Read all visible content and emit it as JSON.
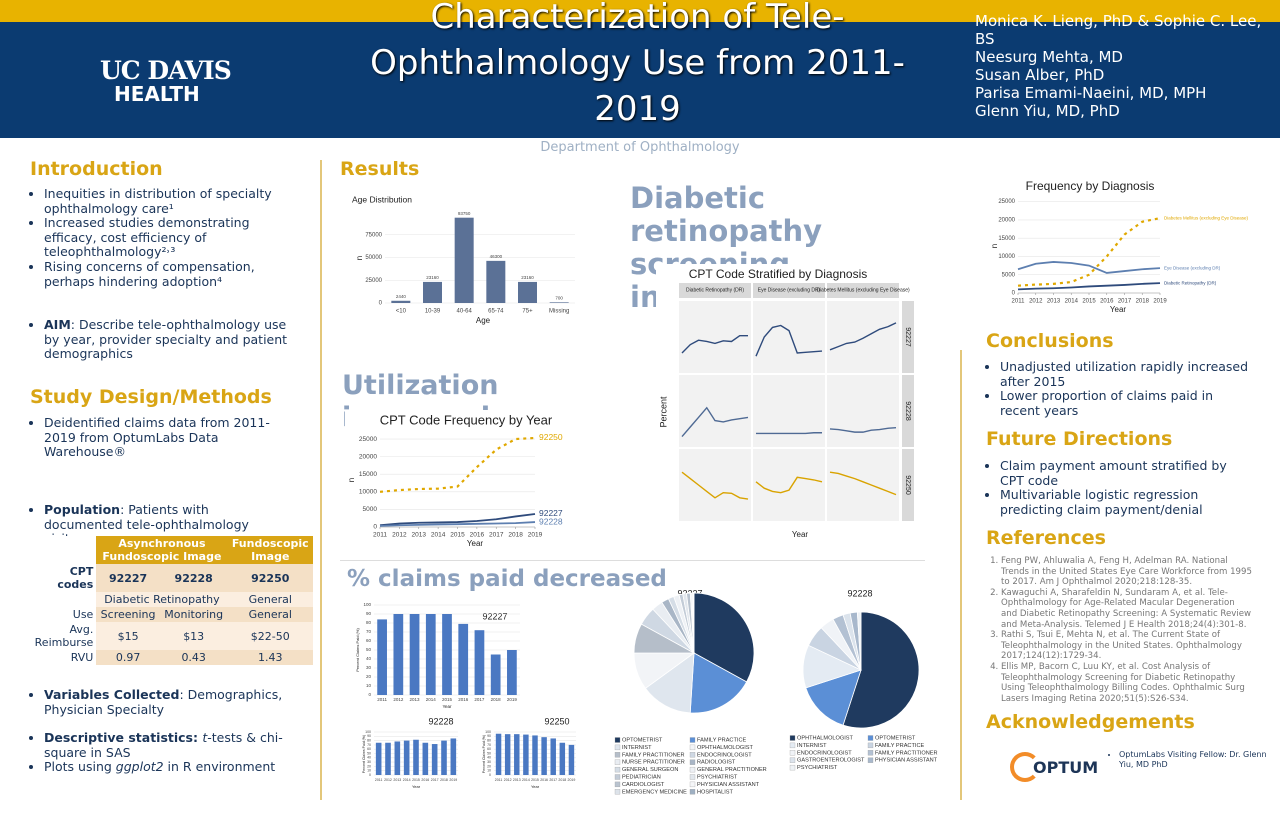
{
  "header": {
    "logo_top": "UC DAVIS",
    "logo_bottom": "HEALTH",
    "title": "Characterization of Tele-Ophthalmology Use from 2011-2019",
    "department": "Department of Ophthalmology",
    "authors": [
      "Monica K. Lieng, PhD & Sophie C. Lee, BS",
      "Neesurg Mehta, MD",
      "Susan Alber, PhD",
      "Parisa Emami-Naeini, MD, MPH",
      "Glenn Yiu, MD, PhD"
    ]
  },
  "introduction": {
    "heading": "Introduction",
    "bullets": [
      {
        "text": "Inequities in distribution of specialty ophthalmology care¹"
      },
      {
        "text": "Increased studies demonstrating efficacy, cost efficiency of teleophthalmology²˒³"
      },
      {
        "text": "Rising concerns of compensation, perhaps hindering adoption⁴"
      }
    ],
    "aim": [
      {
        "lead": "AIM",
        "text": ": Describe tele-ophthalmology use by year, provider specialty and patient demographics"
      }
    ]
  },
  "methods": {
    "heading": "Study Design/Methods",
    "bullets": [
      {
        "text": "Deidentified claims data from 2011-2019 from OptumLabs Data Warehouse®"
      }
    ],
    "population": [
      {
        "lead": "Population",
        "text": ": Patients with documented tele-ophthalmology visits"
      }
    ],
    "variables": [
      {
        "lead": "Variables Collected",
        "text": ": Demographics, Physician Specialty"
      }
    ],
    "analysis": [
      {
        "lead": "Descriptive statistics: ",
        "em": "t",
        "tail": "-tests & chi-square in SAS"
      },
      {
        "text": "Plots using ",
        "em": "ggplot2",
        "tail": " in R environment"
      }
    ]
  },
  "table": {
    "group_headers": [
      "Asynchronous Fundoscopic Image",
      "Fundoscopic Image"
    ],
    "cpt_label": "CPT codes",
    "cpt_codes": [
      "92227",
      "92228",
      "92250"
    ],
    "use_group": [
      "Diabetic Retinopathy",
      "General"
    ],
    "use_label": "Use",
    "use": [
      "Screening",
      "Monitoring",
      "General"
    ],
    "reimburse_label": "Avg. Reimburse",
    "reimburse": [
      "$15",
      "$13",
      "$22-50"
    ],
    "rvu_label": "RVU",
    "rvu": [
      0.97,
      0.43,
      1.43
    ]
  },
  "results": {
    "heading": "Results",
    "finding_1": "Diabetic retinopathy screening increased",
    "finding_2": "Utilization increased",
    "finding_3": "% claims paid decreased"
  },
  "conclusions": {
    "heading": "Conclusions",
    "bullets": [
      {
        "text": "Unadjusted utilization rapidly increased after 2015"
      },
      {
        "text": "Lower proportion of claims paid in recent years"
      }
    ]
  },
  "future": {
    "heading": "Future Directions",
    "bullets": [
      {
        "text": "Claim payment amount stratified by CPT code"
      },
      {
        "text": "Multivariable logistic regression predicting claim payment/denial"
      }
    ]
  },
  "references": {
    "heading": "References",
    "items": [
      "Feng PW, Ahluwalia A, Feng H, Adelman RA. National Trends in the United States Eye Care Workforce from 1995 to 2017. Am J Ophthalmol 2020;218:128-35.",
      "Kawaguchi A, Sharafeldin N, Sundaram A, et al. Tele-Ophthalmology for Age-Related Macular Degeneration and Diabetic Retinopathy Screening: A Systematic Review and Meta-Analysis. Telemed J E Health 2018;24(4):301-8.",
      "Rathi S, Tsui E, Mehta N, et al. The Current State of Teleophthalmology in the United States. Ophthalmology 2017;124(12):1729-34.",
      "Ellis MP, Bacorn C, Luu KY, et al. Cost Analysis of Teleophthalmology Screening for Diabetic Retinopathy Using Teleophthalmology Billing Codes. Ophthalmic Surg Lasers Imaging Retina 2020;51(5):S26-S34."
    ]
  },
  "acknowledgements": {
    "heading": "Acknowledgements",
    "text": "OptumLabs Visiting Fellow: Dr. Glenn Yiu, MD PhD",
    "logo": "OPTUM"
  },
  "chart_data": [
    {
      "type": "bar",
      "title": "Age Distribution",
      "xlabel": "Age",
      "ylabel": "n",
      "categories": [
        "<10",
        "10-39",
        "40-64",
        "65-74",
        "75+",
        "Missing"
      ],
      "values": [
        2440,
        23160,
        93750,
        46300,
        23160,
        700
      ],
      "color": "#5b7196",
      "ylim": [
        0,
        100000
      ],
      "yticks": [
        0,
        25000,
        50000,
        75000
      ],
      "grid": true,
      "data_labels": true
    },
    {
      "type": "line",
      "title": "CPT Code Frequency by Year",
      "xlabel": "Year",
      "ylabel": "n",
      "x": [
        2011,
        2012,
        2013,
        2014,
        2015,
        2016,
        2017,
        2018,
        2019
      ],
      "xlim": [
        2011,
        2019
      ],
      "xticks": [
        2011,
        2012,
        2013,
        2014,
        2015,
        2016,
        2017,
        2018,
        2019
      ],
      "ylim": [
        0,
        27000
      ],
      "yticks": [
        0,
        5000,
        10000,
        15000,
        20000,
        25000
      ],
      "grid": true,
      "end_labels": true,
      "series": [
        {
          "name": "92250",
          "color": "#e0a800",
          "dashed": true,
          "values": [
            10000,
            10500,
            10800,
            10900,
            11500,
            17000,
            22000,
            25000,
            25300
          ]
        },
        {
          "name": "92227",
          "color": "#2f4b7c",
          "values": [
            500,
            1000,
            1200,
            1300,
            1400,
            1700,
            2200,
            3000,
            3700
          ]
        },
        {
          "name": "92228",
          "color": "#5d7fb0",
          "values": [
            300,
            500,
            600,
            700,
            800,
            900,
            1000,
            1100,
            1400
          ]
        }
      ]
    },
    {
      "type": "facet",
      "title": "CPT Code Stratified by Diagnosis",
      "xlabel": "Year",
      "ylabel": "Percent",
      "x": [
        2011,
        2012,
        2013,
        2014,
        2015,
        2016,
        2017,
        2018,
        2019
      ],
      "xlim": [
        2011,
        2019
      ],
      "ylim": [
        0,
        100
      ],
      "columns": [
        "Diabetic Retinopathy (DR)",
        "Eye Disease (excluding DR)",
        "Diabetes Mellitus (excluding Eye Disease)"
      ],
      "rows": [
        "92227",
        "92228",
        "92250"
      ],
      "row_colors": [
        "#2f4b7c",
        "#4f6a94",
        "#d9a300"
      ],
      "panels": [
        {
          "values": [
            25,
            38,
            45,
            43,
            40,
            44,
            43,
            52,
            52
          ]
        },
        {
          "values": [
            20,
            50,
            65,
            68,
            60,
            25,
            26,
            27,
            28
          ]
        },
        {
          "values": [
            30,
            35,
            40,
            42,
            48,
            55,
            62,
            66,
            72
          ]
        },
        {
          "values": [
            10,
            25,
            40,
            55,
            35,
            33,
            36,
            38,
            40
          ]
        },
        {
          "values": [
            15,
            15,
            15,
            15,
            15,
            15,
            15,
            16,
            16
          ]
        },
        {
          "values": [
            22,
            21,
            19,
            17,
            17,
            20,
            21,
            23,
            24
          ]
        },
        {
          "values": [
            70,
            60,
            50,
            40,
            30,
            38,
            37,
            30,
            28
          ]
        },
        {
          "values": [
            55,
            45,
            40,
            38,
            42,
            62,
            60,
            58,
            55
          ]
        },
        {
          "values": [
            70,
            68,
            64,
            60,
            55,
            50,
            45,
            40,
            35
          ]
        }
      ]
    },
    {
      "type": "line",
      "title": "Frequency by Diagnosis",
      "xlabel": "Year",
      "ylabel": "n",
      "x": [
        2011,
        2012,
        2013,
        2014,
        2015,
        2016,
        2017,
        2018,
        2019
      ],
      "xlim": [
        2011,
        2019
      ],
      "xticks": [
        2011,
        2012,
        2013,
        2014,
        2015,
        2016,
        2017,
        2018,
        2019
      ],
      "ylim": [
        0,
        26000
      ],
      "yticks": [
        0,
        5000,
        10000,
        15000,
        20000,
        25000
      ],
      "grid": true,
      "end_labels": true,
      "series": [
        {
          "name": "Diabetes Mellitus (excluding Eye Disease)",
          "color": "#e0a800",
          "dashed": true,
          "values": [
            2000,
            2300,
            2500,
            3000,
            5000,
            10000,
            16000,
            19500,
            20500
          ]
        },
        {
          "name": "Eye Disease (excluding DR)",
          "color": "#5d7fb0",
          "values": [
            6500,
            8000,
            8500,
            8200,
            7500,
            5500,
            6000,
            6500,
            6800
          ]
        },
        {
          "name": "Diabetic Retinopathy (DR)",
          "color": "#2f4b7c",
          "values": [
            1000,
            1200,
            1300,
            1500,
            1800,
            2000,
            2200,
            2500,
            2700
          ]
        }
      ]
    },
    {
      "type": "bar",
      "title": "92227",
      "xlabel": "Year",
      "ylabel": "Percent Claims Paid (%)",
      "categories": [
        "2011",
        "2012",
        "2013",
        "2014",
        "2015",
        "2016",
        "2017",
        "2018",
        "2019"
      ],
      "values": [
        84,
        90,
        90,
        90,
        90,
        79,
        72,
        45,
        50
      ],
      "color": "#4a78c2",
      "ylim": [
        0,
        100
      ],
      "yticks": [
        0,
        10,
        20,
        30,
        40,
        50,
        60,
        70,
        80,
        90,
        100
      ],
      "grid": true
    },
    {
      "type": "bar",
      "title": "92228",
      "xlabel": "Year",
      "ylabel": "Percent Claims Paid (%)",
      "categories": [
        "2011",
        "2012",
        "2013",
        "2014",
        "2015",
        "2016",
        "2017",
        "2018",
        "2019"
      ],
      "values": [
        75,
        75,
        78,
        80,
        82,
        75,
        72,
        80,
        85
      ],
      "color": "#4a78c2",
      "ylim": [
        0,
        100
      ],
      "yticks": [
        0,
        10,
        20,
        30,
        40,
        50,
        60,
        70,
        80,
        90,
        100
      ],
      "grid": true
    },
    {
      "type": "bar",
      "title": "92250",
      "xlabel": "Year",
      "ylabel": "Percent Claims Paid (%)",
      "categories": [
        "2011",
        "2012",
        "2013",
        "2014",
        "2015",
        "2016",
        "2017",
        "2018",
        "2019"
      ],
      "values": [
        96,
        95,
        95,
        94,
        92,
        88,
        85,
        75,
        70
      ],
      "color": "#4a78c2",
      "ylim": [
        0,
        100
      ],
      "yticks": [
        0,
        10,
        20,
        30,
        40,
        50,
        60,
        70,
        80,
        90,
        100
      ],
      "grid": true
    },
    {
      "type": "pie",
      "title": "92227",
      "categories": [
        "OPTOMETRIST",
        "FAMILY PRACTICE",
        "INTERNIST",
        "OPHTHALMOLOGIST",
        "FAMILY PRACTITIONER",
        "ENDOCRINOLOGIST",
        "NURSE PRACTITIONER",
        "RADIOLOGIST",
        "GENERAL SURGEON",
        "GENERAL PRACTITIONER",
        "PEDIATRICIAN",
        "PSYCHIATRIST",
        "CARDIOLOGIST",
        "PHYSICIAN ASSISTANT",
        "EMERGENCY MEDICINE",
        "HOSPITALIST"
      ],
      "values": [
        33,
        18,
        14,
        10,
        8,
        5,
        3,
        2,
        1.5,
        1.5,
        1,
        1,
        1,
        0.5,
        0.3,
        0.2
      ],
      "colors": [
        "#1f3a5f",
        "#5b8fd6",
        "#dfe6ee",
        "#f2f4f7",
        "#b5bec9",
        "#cfd8e3",
        "#e9edf2",
        "#a9b6c6",
        "#d5dde6",
        "#eef1f5",
        "#c3ccd7",
        "#e2e7ed",
        "#b9c3cf",
        "#f5f6f8",
        "#dde3ea",
        "#9fb0c2"
      ]
    },
    {
      "type": "pie",
      "title": "92228",
      "categories": [
        "OPHTHALMOLOGIST",
        "OPTOMETRIST",
        "INTERNIST",
        "FAMILY PRACTICE",
        "ENDOCRINOLOGIST",
        "FAMILY PRACTITIONER",
        "GASTROENTEROLOGIST",
        "PHYSICIAN ASSISTANT",
        "PSYCHIATRIST"
      ],
      "values": [
        55,
        15,
        12,
        6,
        4,
        3,
        2,
        2,
        1
      ],
      "colors": [
        "#1f3a5f",
        "#5b8fd6",
        "#e4ebf3",
        "#c9d4e2",
        "#f0f3f7",
        "#b3c1d3",
        "#dbe3ec",
        "#a8b8cc",
        "#eef2f6"
      ]
    }
  ]
}
